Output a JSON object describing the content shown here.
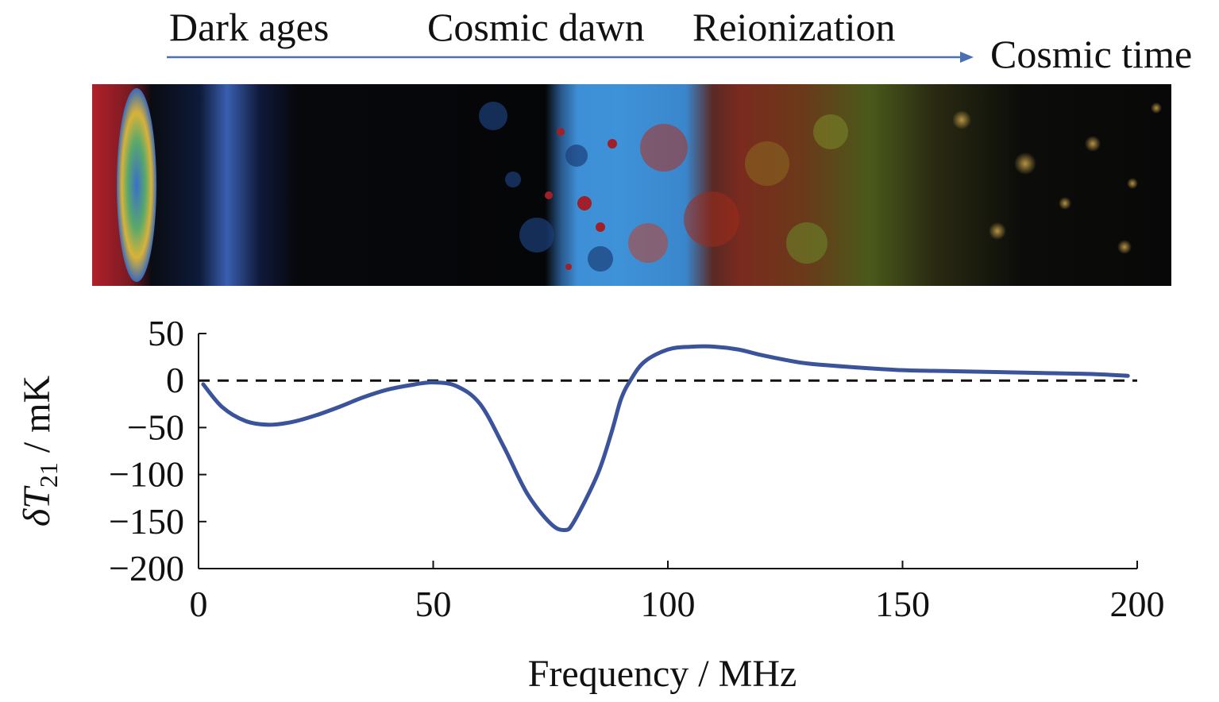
{
  "timeline": {
    "eras": [
      "Dark ages",
      "Cosmic dawn",
      "Reionization"
    ],
    "arrow_label": "Cosmic time",
    "arrow_color": "#4a6fb5"
  },
  "chart_data": {
    "type": "line",
    "xlabel": "Frequency / MHz",
    "ylabel": {
      "symbol": "δT",
      "subscript": "21",
      "unit": " / mK"
    },
    "xlim": [
      0,
      200
    ],
    "ylim": [
      -200,
      50
    ],
    "xticks": [
      0,
      50,
      100,
      150,
      200
    ],
    "yticks": [
      50,
      0,
      -50,
      -100,
      -150,
      -200
    ],
    "ytick_labels": [
      "50",
      "0",
      "−50",
      "−100",
      "−150",
      "−200"
    ],
    "grid": false,
    "reference_line": {
      "y": 0,
      "style": "dashed",
      "color": "#111111"
    },
    "series": [
      {
        "color": "#3a539b",
        "x": [
          1,
          5,
          10,
          15,
          20,
          25,
          30,
          35,
          40,
          45,
          50,
          55,
          60,
          65,
          70,
          75,
          78,
          80,
          85,
          88,
          90,
          92,
          95,
          100,
          105,
          110,
          115,
          120,
          125,
          130,
          140,
          150,
          160,
          170,
          180,
          190,
          198
        ],
        "y": [
          -4,
          -28,
          -43,
          -47,
          -44,
          -37,
          -28,
          -18,
          -10,
          -5,
          -2,
          -6,
          -25,
          -70,
          -120,
          -152,
          -159,
          -150,
          -100,
          -55,
          -20,
          0,
          20,
          33,
          36,
          36,
          33,
          27,
          22,
          18,
          14,
          11,
          10,
          9,
          8,
          7,
          5
        ]
      }
    ]
  }
}
